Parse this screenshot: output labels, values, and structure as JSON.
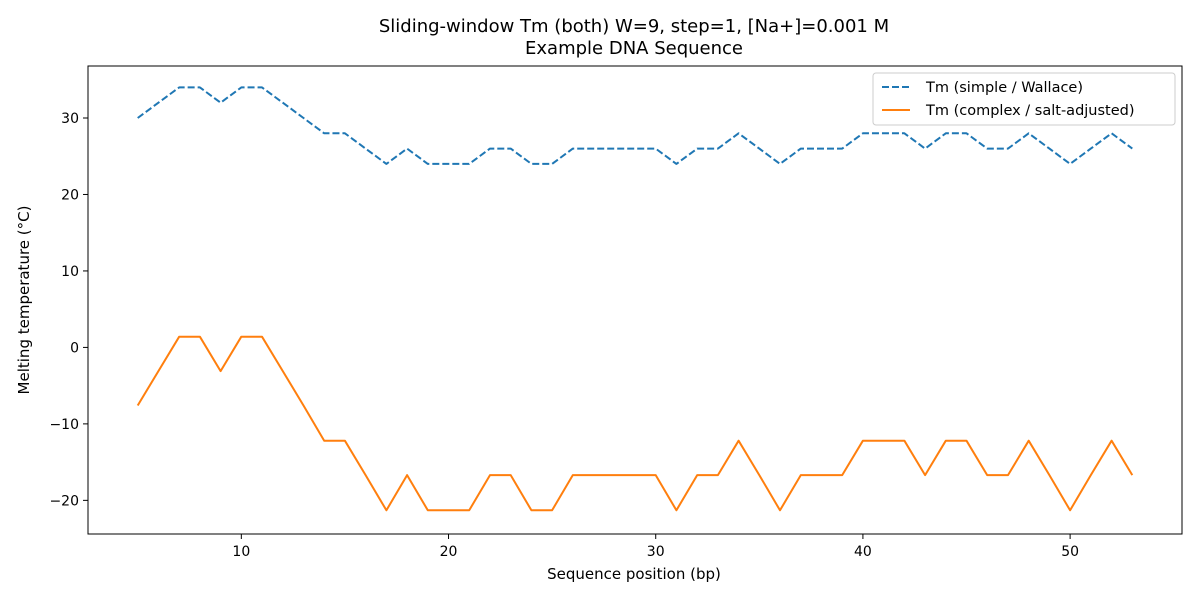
{
  "chart_data": {
    "type": "line",
    "title": "Sliding-window Tm (both) W=9, step=1, [Na+]=0.001 M",
    "subtitle": "Example DNA Sequence",
    "xlabel": "Sequence position (bp)",
    "ylabel": "Melting temperature (°C)",
    "xlim": [
      2.6,
      55.4
    ],
    "ylim": [
      -24.4,
      36.8
    ],
    "xticks": [
      10,
      20,
      30,
      40,
      50
    ],
    "yticks": [
      -20,
      -10,
      0,
      10,
      20,
      30
    ],
    "grid": false,
    "legend_position": "top-right",
    "x": [
      5,
      6,
      7,
      8,
      9,
      10,
      11,
      12,
      13,
      14,
      15,
      16,
      17,
      18,
      19,
      20,
      21,
      22,
      23,
      24,
      25,
      26,
      27,
      28,
      29,
      30,
      31,
      32,
      33,
      34,
      35,
      36,
      37,
      38,
      39,
      40,
      41,
      42,
      43,
      44,
      45,
      46,
      47,
      48,
      49,
      50,
      51,
      52,
      53
    ],
    "series": [
      {
        "name": "Tm (simple / Wallace)",
        "color": "#1f77b4",
        "style": "dashed",
        "values": [
          30,
          32,
          34,
          34,
          32,
          34,
          34,
          32,
          30,
          28,
          28,
          26,
          24,
          26,
          24,
          24,
          24,
          26,
          26,
          24,
          24,
          26,
          26,
          26,
          26,
          26,
          24,
          26,
          26,
          28,
          26,
          24,
          26,
          26,
          26,
          28,
          28,
          28,
          26,
          28,
          28,
          26,
          26,
          28,
          26,
          24,
          26,
          28,
          26
        ]
      },
      {
        "name": "Tm (complex / salt-adjusted)",
        "color": "#ff7f0e",
        "style": "solid",
        "values": [
          -7.6,
          -3.1,
          1.4,
          1.4,
          -3.1,
          1.4,
          1.4,
          -3.1,
          -7.6,
          -12.2,
          -12.2,
          -16.7,
          -21.3,
          -16.7,
          -21.3,
          -21.3,
          -21.3,
          -16.7,
          -16.7,
          -21.3,
          -21.3,
          -16.7,
          -16.7,
          -16.7,
          -16.7,
          -16.7,
          -21.3,
          -16.7,
          -16.7,
          -12.2,
          -16.7,
          -21.3,
          -16.7,
          -16.7,
          -16.7,
          -12.2,
          -12.2,
          -12.2,
          -16.7,
          -12.2,
          -12.2,
          -16.7,
          -16.7,
          -12.2,
          -16.7,
          -21.3,
          -16.7,
          -12.2,
          -16.7
        ]
      }
    ]
  }
}
